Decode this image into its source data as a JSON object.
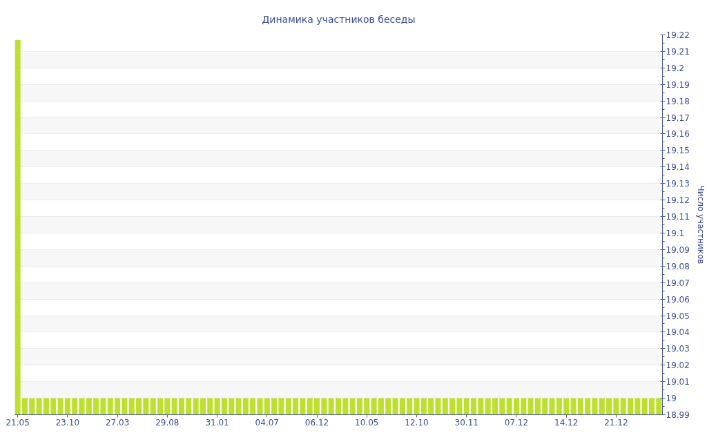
{
  "chart_data": {
    "type": "bar",
    "title": "Динамика участников беседы",
    "ylabel": "Число участников",
    "categories": [
      "21.05",
      null,
      null,
      null,
      null,
      null,
      null,
      "23.10",
      null,
      null,
      null,
      null,
      null,
      null,
      "27.03",
      null,
      null,
      null,
      null,
      null,
      null,
      "29.08",
      null,
      null,
      null,
      null,
      null,
      null,
      "31.01",
      null,
      null,
      null,
      null,
      null,
      null,
      "04.07",
      null,
      null,
      null,
      null,
      null,
      null,
      "06.12",
      null,
      null,
      null,
      null,
      null,
      null,
      "10.05",
      null,
      null,
      null,
      null,
      null,
      null,
      "12.10",
      null,
      null,
      null,
      null,
      null,
      null,
      "30.11",
      null,
      null,
      null,
      null,
      null,
      null,
      "07.12",
      null,
      null,
      null,
      null,
      null,
      null,
      "14.12",
      null,
      null,
      null,
      null,
      null,
      null,
      "21.12",
      null,
      null,
      null,
      null,
      null,
      null
    ],
    "values": [
      19.217,
      19,
      19,
      19,
      19,
      19,
      19,
      19,
      19,
      19,
      19,
      19,
      19,
      19,
      19,
      19,
      19,
      19,
      19,
      19,
      19,
      19,
      19,
      19,
      19,
      19,
      19,
      19,
      19,
      19,
      19,
      19,
      19,
      19,
      19,
      19,
      19,
      19,
      19,
      19,
      19,
      19,
      19,
      19,
      19,
      19,
      19,
      19,
      19,
      19,
      19,
      19,
      19,
      19,
      19,
      19,
      19,
      19,
      19,
      19,
      19,
      19,
      19,
      19,
      19,
      19,
      19,
      19,
      19,
      19,
      19,
      19,
      19,
      19,
      19,
      19,
      19,
      19,
      19,
      19,
      19,
      19,
      19,
      19,
      19,
      19,
      19,
      19,
      19,
      19,
      19
    ],
    "color": "#bde02e",
    "ylim": [
      18.99,
      19.22
    ],
    "yticks": [
      18.99,
      19,
      19.01,
      19.02,
      19.03,
      19.04,
      19.05,
      19.06,
      19.07,
      19.08,
      19.09,
      19.1,
      19.11,
      19.12,
      19.13,
      19.14,
      19.15,
      19.16,
      19.17,
      19.18,
      19.19,
      19.2,
      19.21,
      19.22
    ],
    "grid": "y"
  }
}
